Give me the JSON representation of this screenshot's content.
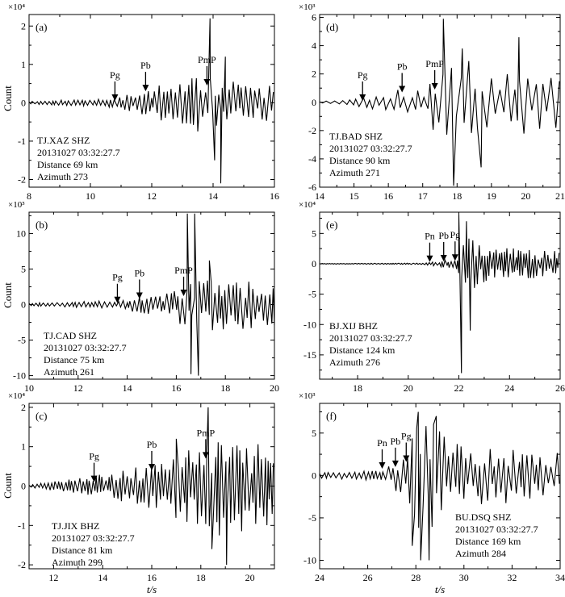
{
  "figure": {
    "xlabel": "t/s",
    "ylabel": "Count"
  },
  "chart_data": [
    {
      "id": "a",
      "panel_label": "(a)",
      "type": "line",
      "xlim": [
        8,
        16
      ],
      "xticks": [
        8,
        10,
        12,
        14,
        16
      ],
      "ylim": [
        -2.2,
        2.3
      ],
      "yticks": [
        -2,
        -1,
        0,
        1,
        2
      ],
      "scale_label": "×10⁴",
      "ylabel": "Count",
      "xlabel": "",
      "info": [
        "TJ.XAZ SHZ",
        "20131027 03:32:27.7",
        "Distance 69 km",
        "Azimuth 273"
      ],
      "phases": [
        {
          "name": "Pg",
          "t": 10.8,
          "tip": 0.05,
          "label_y": 0.75
        },
        {
          "name": "Pb",
          "t": 11.8,
          "tip": 0.3,
          "label_y": 0.9
        },
        {
          "name": "PmP",
          "t": 13.8,
          "tip": 0.45,
          "label_y": 1.1
        }
      ],
      "trace": {
        "t0": 8.0,
        "t1": 16.0,
        "onset": 10.8,
        "segments": [
          [
            8.0,
            0.04
          ],
          [
            10.8,
            0.12
          ],
          [
            11.8,
            0.35
          ],
          [
            12.5,
            0.55
          ],
          [
            13.7,
            0.8
          ],
          [
            14.1,
            0.6
          ],
          [
            16.0,
            0.45
          ]
        ],
        "spikes": [
          {
            "t": 13.9,
            "v": 2.2
          },
          {
            "t": 14.05,
            "v": -1.5
          },
          {
            "t": 14.25,
            "v": -2.1
          },
          {
            "t": 14.4,
            "v": 1.2
          }
        ],
        "period": 0.14,
        "seed": 11
      }
    },
    {
      "id": "d",
      "panel_label": "(d)",
      "type": "line",
      "xlim": [
        14,
        21
      ],
      "xticks": [
        14,
        15,
        16,
        17,
        18,
        19,
        20,
        21
      ],
      "ylim": [
        -6,
        6.2
      ],
      "yticks": [
        -6,
        -4,
        -2,
        0,
        2,
        4,
        6
      ],
      "scale_label": "×10³",
      "ylabel": "",
      "xlabel": "",
      "info": [
        "TJ.BAD SHZ",
        "20131027 03:32:27.7",
        "Distance 90 km",
        "Azimuth 271"
      ],
      "phases": [
        {
          "name": "Pg",
          "t": 15.25,
          "tip": 0.1,
          "label_y": 1.9
        },
        {
          "name": "Pb",
          "t": 16.4,
          "tip": 0.7,
          "label_y": 2.5
        },
        {
          "name": "PmP",
          "t": 17.35,
          "tip": 0.9,
          "label_y": 2.4
        }
      ],
      "trace": {
        "t0": 14.0,
        "t1": 21.0,
        "onset": 15.2,
        "segments": [
          [
            14.0,
            0.05
          ],
          [
            15.2,
            0.35
          ],
          [
            16.3,
            0.9
          ],
          [
            17.2,
            1.3
          ],
          [
            17.55,
            3.5
          ],
          [
            18.5,
            2.8
          ],
          [
            21.0,
            2.0
          ]
        ],
        "spikes": [
          {
            "t": 17.6,
            "v": 5.9
          },
          {
            "t": 17.9,
            "v": -5.9
          },
          {
            "t": 18.15,
            "v": 3.8
          },
          {
            "t": 18.7,
            "v": -4.6
          },
          {
            "t": 19.8,
            "v": 4.6
          }
        ],
        "period": 0.2,
        "seed": 23
      }
    },
    {
      "id": "b",
      "panel_label": "(b)",
      "type": "line",
      "xlim": [
        10,
        20
      ],
      "xticks": [
        10,
        12,
        14,
        16,
        18,
        20
      ],
      "ylim": [
        -10.5,
        13
      ],
      "yticks": [
        -10,
        -5,
        0,
        5,
        10
      ],
      "scale_label": "×10³",
      "ylabel": "Count",
      "xlabel": "",
      "info": [
        "TJ.CAD SHZ",
        "20131027 03:32:27.7",
        "Distance 75 km",
        "Azimuth 261"
      ],
      "phases": [
        {
          "name": "Pg",
          "t": 13.6,
          "tip": 0.2,
          "label_y": 4.5
        },
        {
          "name": "Pb",
          "t": 14.5,
          "tip": 0.8,
          "label_y": 3.3
        },
        {
          "name": "PmP",
          "t": 16.3,
          "tip": 1.2,
          "label_y": 3.3
        }
      ],
      "trace": {
        "t0": 10.0,
        "t1": 20.0,
        "onset": 13.5,
        "segments": [
          [
            10.0,
            0.25
          ],
          [
            13.5,
            0.6
          ],
          [
            14.5,
            1.2
          ],
          [
            15.5,
            1.6
          ],
          [
            16.2,
            3.0
          ],
          [
            17.3,
            3.8
          ],
          [
            20.0,
            3.2
          ]
        ],
        "spikes": [
          {
            "t": 16.45,
            "v": 12.8
          },
          {
            "t": 16.6,
            "v": -9.8
          },
          {
            "t": 16.75,
            "v": 12.8
          },
          {
            "t": 16.9,
            "v": -10.0
          },
          {
            "t": 17.35,
            "v": 6.2
          }
        ],
        "period": 0.16,
        "seed": 37
      }
    },
    {
      "id": "e",
      "panel_label": "(e)",
      "type": "line",
      "xlim": [
        16.5,
        26
      ],
      "xticks": [
        18,
        20,
        22,
        24,
        26
      ],
      "ylim": [
        -19,
        8.5
      ],
      "yticks": [
        -15,
        -10,
        -5,
        0,
        5
      ],
      "scale_label": "×10⁴",
      "ylabel": "",
      "xlabel": "",
      "info": [
        "BJ.XIJ BHZ",
        "20131027 03:32:27.7",
        "Distance 124 km",
        "Azimuth 276"
      ],
      "phases": [
        {
          "name": "Pn",
          "t": 20.85,
          "tip": 0.3,
          "label_y": 3.6
        },
        {
          "name": "Pb",
          "t": 21.4,
          "tip": 0.4,
          "label_y": 4.0
        },
        {
          "name": "Pg",
          "t": 21.85,
          "tip": 0.5,
          "label_y": 4.3
        }
      ],
      "trace": {
        "t0": 16.5,
        "t1": 26.0,
        "onset": 20.5,
        "segments": [
          [
            16.5,
            0.05
          ],
          [
            20.5,
            0.12
          ],
          [
            21.3,
            0.5
          ],
          [
            21.85,
            1.0
          ],
          [
            22.4,
            4.5
          ],
          [
            23.2,
            2.6
          ],
          [
            26.0,
            2.4
          ]
        ],
        "spikes": [
          {
            "t": 22.0,
            "v": 8.0
          },
          {
            "t": 22.1,
            "v": -18.0
          },
          {
            "t": 22.3,
            "v": 7.0
          },
          {
            "t": 22.45,
            "v": -11.0
          }
        ],
        "period": 0.12,
        "seed": 53
      }
    },
    {
      "id": "c",
      "panel_label": "(c)",
      "type": "line",
      "xlim": [
        11,
        21
      ],
      "xticks": [
        12,
        14,
        16,
        18,
        20
      ],
      "ylim": [
        -2.1,
        2.1
      ],
      "yticks": [
        -2,
        -1,
        0,
        1,
        2
      ],
      "scale_label": "×10⁴",
      "ylabel": "Count",
      "xlabel": "",
      "info": [
        "TJ.JIX BHZ",
        "20131027 03:32:27.7",
        "Distance 81 km",
        "Azimuth 299"
      ],
      "phases": [
        {
          "name": "Pg",
          "t": 13.65,
          "tip": 0.1,
          "label_y": 0.95
        },
        {
          "name": "Pb",
          "t": 16.0,
          "tip": 0.4,
          "label_y": 1.15
        },
        {
          "name": "PmP",
          "t": 18.2,
          "tip": 0.7,
          "label_y": 1.4
        }
      ],
      "trace": {
        "t0": 11.0,
        "t1": 21.0,
        "onset": 13.6,
        "segments": [
          [
            11.0,
            0.03
          ],
          [
            13.6,
            0.25
          ],
          [
            15.0,
            0.45
          ],
          [
            16.5,
            0.75
          ],
          [
            17.8,
            1.0
          ],
          [
            18.6,
            1.4
          ],
          [
            21.0,
            1.0
          ]
        ],
        "spikes": [
          {
            "t": 18.3,
            "v": 2.0
          },
          {
            "t": 18.45,
            "v": -1.6
          },
          {
            "t": 19.05,
            "v": -2.0
          },
          {
            "t": 17.0,
            "v": 1.2
          }
        ],
        "period": 0.15,
        "seed": 71
      }
    },
    {
      "id": "f",
      "panel_label": "(f)",
      "type": "line",
      "xlim": [
        24,
        34
      ],
      "xticks": [
        24,
        26,
        28,
        30,
        32,
        34
      ],
      "ylim": [
        -11,
        8.5
      ],
      "yticks": [
        -10,
        -5,
        0,
        5
      ],
      "scale_label": "×10³",
      "ylabel": "",
      "xlabel": "t/s",
      "info": [
        "BU.DSQ SHZ",
        "20131027 03:32:27.7",
        "Distance 169 km",
        "Azimuth 284"
      ],
      "phases": [
        {
          "name": "Pn",
          "t": 26.6,
          "tip": 0.8,
          "label_y": 3.9
        },
        {
          "name": "Pb",
          "t": 27.15,
          "tip": 1.0,
          "label_y": 3.7
        },
        {
          "name": "Pg",
          "t": 27.6,
          "tip": 1.6,
          "label_y": 6.3
        }
      ],
      "trace": {
        "t0": 24.0,
        "t1": 34.0,
        "onset": 26.5,
        "segments": [
          [
            24.0,
            0.35
          ],
          [
            26.5,
            0.6
          ],
          [
            27.5,
            2.5
          ],
          [
            28.0,
            7.0
          ],
          [
            28.8,
            6.0
          ],
          [
            29.5,
            4.0
          ],
          [
            34.0,
            3.0
          ]
        ],
        "spikes": [
          {
            "t": 27.85,
            "v": -8.3
          },
          {
            "t": 28.1,
            "v": 7.5
          },
          {
            "t": 28.2,
            "v": -10.0
          },
          {
            "t": 28.55,
            "v": -10.0
          },
          {
            "t": 28.85,
            "v": 7.0
          }
        ],
        "period": 0.19,
        "seed": 89
      }
    }
  ]
}
